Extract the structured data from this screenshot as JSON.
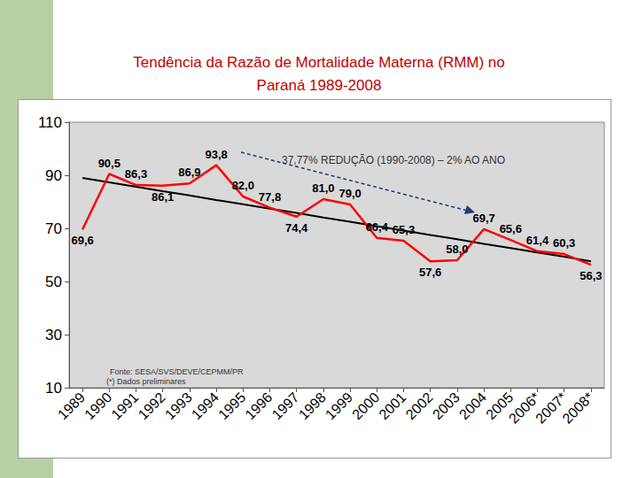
{
  "chart_data": {
    "type": "line",
    "title": "Tendência da Razão de Mortalidade Materna (RMM) no\nParaná 1989-2008",
    "categories": [
      "1989",
      "1990",
      "1991",
      "1992",
      "1993",
      "1994",
      "1995",
      "1996",
      "1997",
      "1998",
      "1999",
      "2000",
      "2001",
      "2002",
      "2003",
      "2004",
      "2005",
      "2006*",
      "2007*",
      "2008*"
    ],
    "series": [
      {
        "color": "#ff0000",
        "line_style": "solid",
        "data_labels": true,
        "values": [
          69.6,
          90.5,
          86.3,
          86.1,
          86.9,
          93.8,
          82.0,
          77.8,
          74.4,
          81.0,
          79.0,
          66.4,
          65.3,
          57.6,
          58.0,
          69.7,
          65.6,
          61.4,
          60.3,
          56.3
        ],
        "value_labels": [
          "69,6",
          "90,5",
          "86,3",
          "86,1",
          "86,9",
          "93,8",
          "82,0",
          "77,8",
          "74,4",
          "81,0",
          "79,0",
          "66,4",
          "65,3",
          "57,6",
          "58,0",
          "69,7",
          "65,6",
          "61,4",
          "60,3",
          "56,3"
        ]
      },
      {
        "color": "#000000",
        "line_style": "solid",
        "data_labels": false,
        "values": [
          89.0,
          87.3,
          85.7,
          84.0,
          82.4,
          80.7,
          79.1,
          77.4,
          75.8,
          74.1,
          72.5,
          70.8,
          69.2,
          67.5,
          65.9,
          64.2,
          62.6,
          60.9,
          59.3,
          57.6
        ]
      }
    ],
    "annotations": [
      "37,77% REDUÇÃO (1990-2008) – 2% AO ANO",
      "Fonte: SESA/SVS/DEVE/CEPMM/PR",
      "(*) Dados preliminares"
    ],
    "ylim": [
      10,
      110
    ],
    "yticks": [
      10,
      30,
      50,
      70,
      90,
      110
    ],
    "grid": false
  }
}
